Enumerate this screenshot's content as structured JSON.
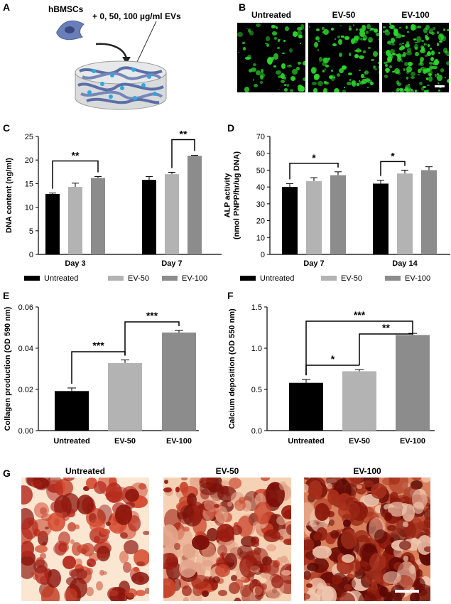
{
  "panel_letters": {
    "a": "A",
    "b": "B",
    "c": "C",
    "d": "D",
    "e": "E",
    "f": "F",
    "g": "G"
  },
  "panel_a": {
    "cell_label": "hBMSCs",
    "dose_label": "+ 0, 50, 100 µg/ml EVs"
  },
  "panel_b": {
    "titles": [
      "Untreated",
      "EV-50",
      "EV-100"
    ]
  },
  "panel_g": {
    "titles": [
      "Untreated",
      "EV-50",
      "EV-100"
    ]
  },
  "legend_cd": [
    "Untreated",
    "EV-50",
    "EV-100"
  ],
  "colors": {
    "untreated": "#000000",
    "ev50": "#b3b3b3",
    "ev100": "#8c8c8c",
    "fluor": "#2bd92b",
    "stain_dark": "#7a0f08",
    "stain_light": "#fbead8"
  },
  "chart_data": [
    {
      "panel": "C",
      "type": "bar",
      "categories": [
        "Day 3",
        "Day 7"
      ],
      "series": [
        {
          "name": "Untreated",
          "values": [
            12.8,
            15.8
          ],
          "errors": [
            0.2,
            0.7
          ]
        },
        {
          "name": "EV-50",
          "values": [
            14.3,
            17.0
          ],
          "errors": [
            0.8,
            0.4
          ]
        },
        {
          "name": "EV-100",
          "values": [
            16.2,
            20.9
          ],
          "errors": [
            0.3,
            0.1
          ]
        }
      ],
      "ylabel": "DNA content (ng/ml)",
      "ylim": [
        0,
        25
      ],
      "yticks": [
        "0",
        "5",
        "10",
        "15",
        "20",
        "25"
      ],
      "significance": [
        {
          "group": 0,
          "from": 0,
          "to": 2,
          "label": "**"
        },
        {
          "group": 1,
          "from": 1,
          "to": 2,
          "label": "**"
        }
      ]
    },
    {
      "panel": "D",
      "type": "bar",
      "categories": [
        "Day 7",
        "Day 14"
      ],
      "series": [
        {
          "name": "Untreated",
          "values": [
            40,
            42
          ],
          "errors": [
            2,
            2
          ]
        },
        {
          "name": "EV-50",
          "values": [
            43.5,
            48
          ],
          "errors": [
            2,
            2
          ]
        },
        {
          "name": "EV-100",
          "values": [
            47,
            50
          ],
          "errors": [
            2,
            2
          ]
        }
      ],
      "ylabel": "ALP activity\n(nmol PNPP/hr/ug DNA)",
      "ylim": [
        0,
        70
      ],
      "yticks": [
        "0",
        "10",
        "20",
        "30",
        "40",
        "50",
        "60",
        "70"
      ],
      "significance": [
        {
          "group": 0,
          "from": 0,
          "to": 2,
          "label": "*"
        },
        {
          "group": 1,
          "from": 0,
          "to": 1,
          "label": "*"
        }
      ]
    },
    {
      "panel": "E",
      "type": "bar",
      "categories": [
        "Untreated",
        "EV-50",
        "EV-100"
      ],
      "values": [
        0.0192,
        0.0328,
        0.0476
      ],
      "errors": [
        0.0015,
        0.0015,
        0.001
      ],
      "ylabel": "Collagen production (OD 590 nm)",
      "ylim": [
        0,
        0.06
      ],
      "yticks": [
        "0.00",
        "0.02",
        "0.04",
        "0.06"
      ],
      "significance": [
        {
          "from": 0,
          "to": 1,
          "label": "***"
        },
        {
          "from": 1,
          "to": 2,
          "label": "***"
        }
      ]
    },
    {
      "panel": "F",
      "type": "bar",
      "categories": [
        "Untreated",
        "EV-50",
        "EV-100"
      ],
      "values": [
        0.58,
        0.72,
        1.16
      ],
      "errors": [
        0.04,
        0.02,
        0.02
      ],
      "ylabel": "Calcium deposition (OD 550 nm)",
      "ylim": [
        0,
        1.5
      ],
      "yticks": [
        "0.0",
        "0.5",
        "1.0",
        "1.5"
      ],
      "significance": [
        {
          "from": 0,
          "to": 1,
          "label": "*"
        },
        {
          "from": 1,
          "to": 2,
          "label": "**"
        },
        {
          "from": 0,
          "to": 2,
          "label": "***"
        }
      ]
    }
  ]
}
